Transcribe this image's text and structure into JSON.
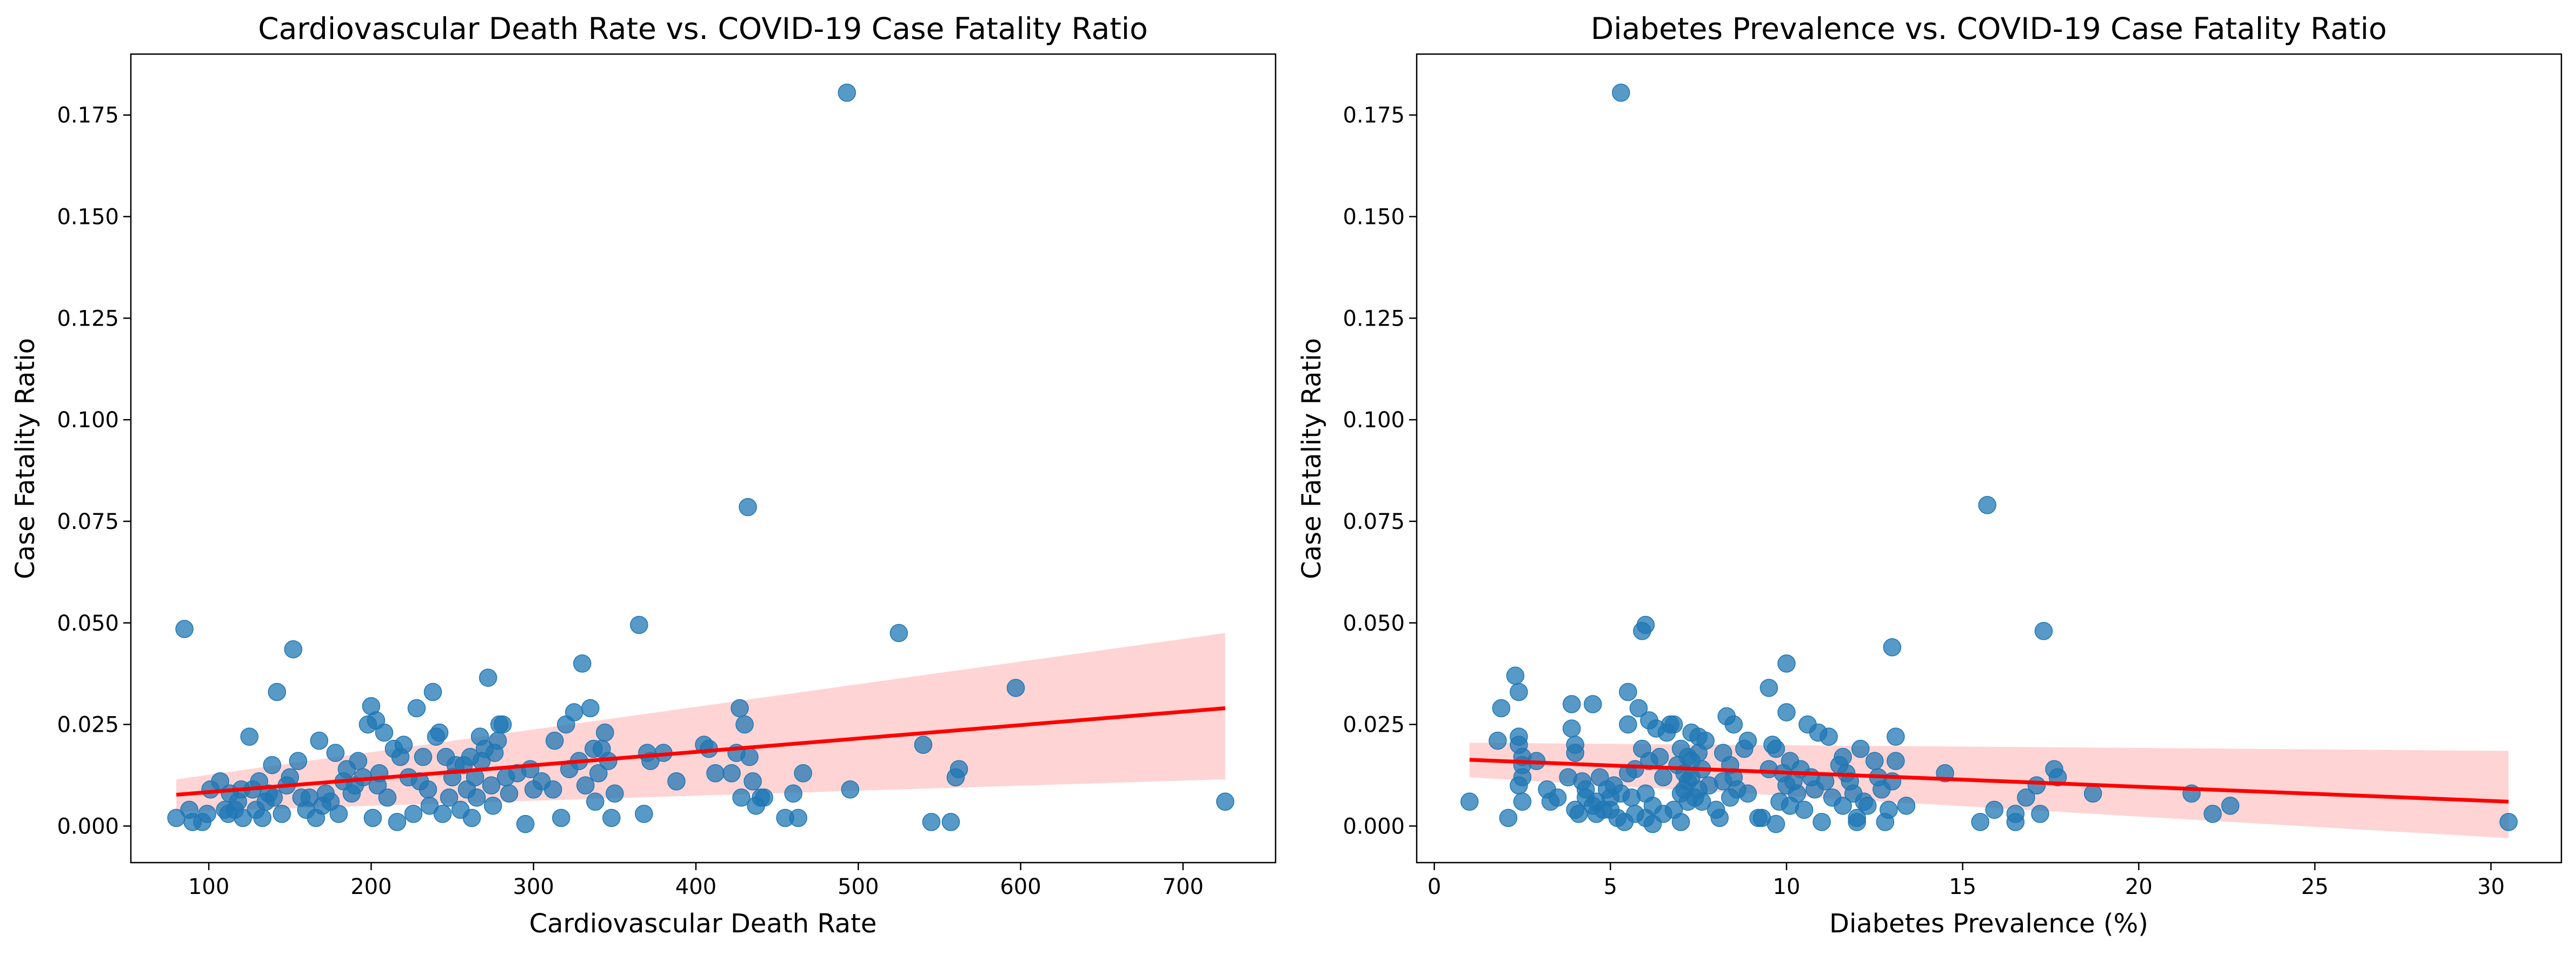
{
  "figure": {
    "background": "#ffffff"
  },
  "chart_data": [
    {
      "type": "scatter",
      "title": "Cardiovascular Death Rate vs. COVID-19 Case Fatality Ratio",
      "xlabel": "Cardiovascular Death Rate",
      "ylabel": "Case Fatality Ratio",
      "xlim": [
        52,
        757
      ],
      "ylim": [
        -0.009,
        0.19
      ],
      "xticks": [
        100,
        200,
        300,
        400,
        500,
        600,
        700
      ],
      "xtick_labels": [
        "100",
        "200",
        "300",
        "400",
        "500",
        "600",
        "700"
      ],
      "yticks": [
        0.0,
        0.025,
        0.05,
        0.075,
        0.1,
        0.125,
        0.15,
        0.175
      ],
      "ytick_labels": [
        "0.000",
        "0.025",
        "0.050",
        "0.075",
        "0.100",
        "0.125",
        "0.150",
        "0.175"
      ],
      "grid": false,
      "legend": "none",
      "marker_color": "#1f77b4",
      "fit_color": "#ff0000",
      "band_color": "#ffcccc",
      "points": [
        [
          80,
          0.002
        ],
        [
          85,
          0.0485
        ],
        [
          88,
          0.004
        ],
        [
          90,
          0.001
        ],
        [
          96,
          0.001
        ],
        [
          99,
          0.003
        ],
        [
          101,
          0.009
        ],
        [
          107,
          0.011
        ],
        [
          110,
          0.004
        ],
        [
          112,
          0.003
        ],
        [
          113,
          0.008
        ],
        [
          116,
          0.004
        ],
        [
          118,
          0.006
        ],
        [
          120,
          0.009
        ],
        [
          121,
          0.002
        ],
        [
          125,
          0.022
        ],
        [
          127,
          0.009
        ],
        [
          129,
          0.004
        ],
        [
          131,
          0.011
        ],
        [
          133,
          0.002
        ],
        [
          135,
          0.006
        ],
        [
          137,
          0.008
        ],
        [
          139,
          0.015
        ],
        [
          140,
          0.007
        ],
        [
          142,
          0.033
        ],
        [
          145,
          0.003
        ],
        [
          148,
          0.01
        ],
        [
          150,
          0.012
        ],
        [
          152,
          0.0435
        ],
        [
          155,
          0.016
        ],
        [
          157,
          0.007
        ],
        [
          160,
          0.004
        ],
        [
          162,
          0.007
        ],
        [
          166,
          0.002
        ],
        [
          168,
          0.021
        ],
        [
          170,
          0.005
        ],
        [
          172,
          0.008
        ],
        [
          175,
          0.006
        ],
        [
          178,
          0.018
        ],
        [
          180,
          0.003
        ],
        [
          183,
          0.011
        ],
        [
          185,
          0.014
        ],
        [
          188,
          0.008
        ],
        [
          190,
          0.01
        ],
        [
          192,
          0.016
        ],
        [
          195,
          0.012
        ],
        [
          198,
          0.025
        ],
        [
          200,
          0.0295
        ],
        [
          201,
          0.002
        ],
        [
          203,
          0.026
        ],
        [
          204,
          0.01
        ],
        [
          205,
          0.013
        ],
        [
          208,
          0.023
        ],
        [
          210,
          0.007
        ],
        [
          214,
          0.019
        ],
        [
          216,
          0.001
        ],
        [
          218,
          0.017
        ],
        [
          220,
          0.02
        ],
        [
          223,
          0.012
        ],
        [
          226,
          0.003
        ],
        [
          228,
          0.029
        ],
        [
          230,
          0.011
        ],
        [
          232,
          0.017
        ],
        [
          235,
          0.009
        ],
        [
          236,
          0.005
        ],
        [
          238,
          0.033
        ],
        [
          240,
          0.022
        ],
        [
          242,
          0.023
        ],
        [
          244,
          0.003
        ],
        [
          246,
          0.017
        ],
        [
          248,
          0.007
        ],
        [
          250,
          0.012
        ],
        [
          252,
          0.015
        ],
        [
          255,
          0.004
        ],
        [
          257,
          0.015
        ],
        [
          259,
          0.009
        ],
        [
          261,
          0.017
        ],
        [
          262,
          0.002
        ],
        [
          264,
          0.012
        ],
        [
          265,
          0.007
        ],
        [
          267,
          0.022
        ],
        [
          268,
          0.016
        ],
        [
          270,
          0.019
        ],
        [
          272,
          0.0365
        ],
        [
          274,
          0.01
        ],
        [
          275,
          0.005
        ],
        [
          276,
          0.018
        ],
        [
          278,
          0.021
        ],
        [
          279,
          0.025
        ],
        [
          281,
          0.025
        ],
        [
          283,
          0.012
        ],
        [
          285,
          0.008
        ],
        [
          290,
          0.013
        ],
        [
          295,
          0.0005
        ],
        [
          298,
          0.014
        ],
        [
          300,
          0.009
        ],
        [
          305,
          0.011
        ],
        [
          312,
          0.009
        ],
        [
          313,
          0.021
        ],
        [
          317,
          0.002
        ],
        [
          320,
          0.025
        ],
        [
          322,
          0.014
        ],
        [
          325,
          0.028
        ],
        [
          328,
          0.016
        ],
        [
          330,
          0.04
        ],
        [
          332,
          0.01
        ],
        [
          335,
          0.029
        ],
        [
          337,
          0.019
        ],
        [
          338,
          0.006
        ],
        [
          340,
          0.013
        ],
        [
          342,
          0.019
        ],
        [
          344,
          0.023
        ],
        [
          346,
          0.016
        ],
        [
          348,
          0.002
        ],
        [
          350,
          0.008
        ],
        [
          365,
          0.0495
        ],
        [
          368,
          0.003
        ],
        [
          370,
          0.018
        ],
        [
          372,
          0.016
        ],
        [
          380,
          0.018
        ],
        [
          388,
          0.011
        ],
        [
          405,
          0.02
        ],
        [
          408,
          0.019
        ],
        [
          412,
          0.013
        ],
        [
          422,
          0.013
        ],
        [
          425,
          0.018
        ],
        [
          427,
          0.029
        ],
        [
          428,
          0.007
        ],
        [
          430,
          0.025
        ],
        [
          432,
          0.0785
        ],
        [
          433,
          0.017
        ],
        [
          435,
          0.011
        ],
        [
          437,
          0.005
        ],
        [
          440,
          0.007
        ],
        [
          442,
          0.007
        ],
        [
          455,
          0.002
        ],
        [
          460,
          0.008
        ],
        [
          463,
          0.002
        ],
        [
          466,
          0.013
        ],
        [
          493,
          0.1805
        ],
        [
          495,
          0.009
        ],
        [
          525,
          0.0475
        ],
        [
          540,
          0.02
        ],
        [
          545,
          0.001
        ],
        [
          557,
          0.001
        ],
        [
          560,
          0.012
        ],
        [
          562,
          0.014
        ],
        [
          597,
          0.034
        ],
        [
          726,
          0.006
        ]
      ],
      "fit_line": {
        "x": [
          80,
          726
        ],
        "y": [
          0.0077,
          0.029
        ]
      },
      "confidence_band": {
        "x": [
          80,
          726
        ],
        "lower": [
          0.0035,
          0.0115
        ],
        "upper": [
          0.0115,
          0.0475
        ]
      }
    },
    {
      "type": "scatter",
      "title": "Diabetes Prevalence vs. COVID-19 Case Fatality Ratio",
      "xlabel": "Diabetes Prevalence (%)",
      "ylabel": "Case Fatality Ratio",
      "xlim": [
        -0.5,
        32
      ],
      "ylim": [
        -0.009,
        0.19
      ],
      "xticks": [
        0,
        5,
        10,
        15,
        20,
        25,
        30
      ],
      "xtick_labels": [
        "0",
        "5",
        "10",
        "15",
        "20",
        "25",
        "30"
      ],
      "yticks": [
        0.0,
        0.025,
        0.05,
        0.075,
        0.1,
        0.125,
        0.15,
        0.175
      ],
      "ytick_labels": [
        "0.000",
        "0.025",
        "0.050",
        "0.075",
        "0.100",
        "0.125",
        "0.150",
        "0.175"
      ],
      "grid": false,
      "legend": "none",
      "marker_color": "#1f77b4",
      "fit_color": "#ff0000",
      "band_color": "#ffcccc",
      "points": [
        [
          1.0,
          0.006
        ],
        [
          1.8,
          0.021
        ],
        [
          1.9,
          0.029
        ],
        [
          2.1,
          0.002
        ],
        [
          2.3,
          0.037
        ],
        [
          2.4,
          0.033
        ],
        [
          2.4,
          0.022
        ],
        [
          2.4,
          0.02
        ],
        [
          2.5,
          0.017
        ],
        [
          2.5,
          0.015
        ],
        [
          2.5,
          0.012
        ],
        [
          2.4,
          0.01
        ],
        [
          2.5,
          0.006
        ],
        [
          2.9,
          0.016
        ],
        [
          3.2,
          0.009
        ],
        [
          3.3,
          0.006
        ],
        [
          3.5,
          0.007
        ],
        [
          3.8,
          0.012
        ],
        [
          3.9,
          0.03
        ],
        [
          3.9,
          0.024
        ],
        [
          4.0,
          0.02
        ],
        [
          4.0,
          0.018
        ],
        [
          4.0,
          0.004
        ],
        [
          4.1,
          0.003
        ],
        [
          4.2,
          0.011
        ],
        [
          4.3,
          0.009
        ],
        [
          4.3,
          0.007
        ],
        [
          4.5,
          0.005
        ],
        [
          4.5,
          0.03
        ],
        [
          4.6,
          0.006
        ],
        [
          4.6,
          0.003
        ],
        [
          4.7,
          0.012
        ],
        [
          4.8,
          0.004
        ],
        [
          4.9,
          0.009
        ],
        [
          5.0,
          0.007
        ],
        [
          5.0,
          0.004
        ],
        [
          5.1,
          0.01
        ],
        [
          5.2,
          0.002
        ],
        [
          5.3,
          0.008
        ],
        [
          5.3,
          0.1805
        ],
        [
          5.4,
          0.001
        ],
        [
          5.5,
          0.025
        ],
        [
          5.5,
          0.033
        ],
        [
          5.5,
          0.013
        ],
        [
          5.6,
          0.007
        ],
        [
          5.7,
          0.003
        ],
        [
          5.7,
          0.014
        ],
        [
          5.8,
          0.029
        ],
        [
          5.9,
          0.048
        ],
        [
          5.9,
          0.019
        ],
        [
          6.0,
          0.0495
        ],
        [
          6.0,
          0.008
        ],
        [
          6.0,
          0.002
        ],
        [
          6.1,
          0.016
        ],
        [
          6.1,
          0.026
        ],
        [
          6.2,
          0.005
        ],
        [
          6.2,
          0.0005
        ],
        [
          6.3,
          0.024
        ],
        [
          6.4,
          0.017
        ],
        [
          6.5,
          0.003
        ],
        [
          6.5,
          0.012
        ],
        [
          6.6,
          0.023
        ],
        [
          6.7,
          0.025
        ],
        [
          6.8,
          0.025
        ],
        [
          6.8,
          0.004
        ],
        [
          6.9,
          0.015
        ],
        [
          7.0,
          0.019
        ],
        [
          7.0,
          0.008
        ],
        [
          7.0,
          0.001
        ],
        [
          7.1,
          0.009
        ],
        [
          7.1,
          0.013
        ],
        [
          7.2,
          0.011
        ],
        [
          7.2,
          0.017
        ],
        [
          7.2,
          0.006
        ],
        [
          7.3,
          0.023
        ],
        [
          7.3,
          0.016
        ],
        [
          7.3,
          0.012
        ],
        [
          7.4,
          0.007
        ],
        [
          7.5,
          0.009
        ],
        [
          7.5,
          0.018
        ],
        [
          7.5,
          0.022
        ],
        [
          7.6,
          0.014
        ],
        [
          7.6,
          0.006
        ],
        [
          7.7,
          0.021
        ],
        [
          7.8,
          0.01
        ],
        [
          8.0,
          0.004
        ],
        [
          8.1,
          0.002
        ],
        [
          8.2,
          0.018
        ],
        [
          8.2,
          0.011
        ],
        [
          8.3,
          0.027
        ],
        [
          8.4,
          0.015
        ],
        [
          8.4,
          0.007
        ],
        [
          8.5,
          0.012
        ],
        [
          8.5,
          0.025
        ],
        [
          8.6,
          0.009
        ],
        [
          8.8,
          0.019
        ],
        [
          8.9,
          0.008
        ],
        [
          8.9,
          0.021
        ],
        [
          9.2,
          0.002
        ],
        [
          9.3,
          0.002
        ],
        [
          9.5,
          0.034
        ],
        [
          9.5,
          0.014
        ],
        [
          9.6,
          0.02
        ],
        [
          9.7,
          0.0005
        ],
        [
          9.7,
          0.019
        ],
        [
          9.8,
          0.006
        ],
        [
          9.9,
          0.013
        ],
        [
          10.0,
          0.01
        ],
        [
          10.0,
          0.04
        ],
        [
          10.0,
          0.028
        ],
        [
          10.1,
          0.016
        ],
        [
          10.1,
          0.005
        ],
        [
          10.2,
          0.011
        ],
        [
          10.3,
          0.008
        ],
        [
          10.4,
          0.014
        ],
        [
          10.5,
          0.004
        ],
        [
          10.6,
          0.025
        ],
        [
          10.7,
          0.012
        ],
        [
          10.8,
          0.009
        ],
        [
          10.9,
          0.023
        ],
        [
          11.0,
          0.001
        ],
        [
          11.1,
          0.011
        ],
        [
          11.2,
          0.022
        ],
        [
          11.3,
          0.007
        ],
        [
          11.5,
          0.015
        ],
        [
          11.6,
          0.017
        ],
        [
          11.6,
          0.005
        ],
        [
          11.7,
          0.013
        ],
        [
          11.8,
          0.011
        ],
        [
          11.9,
          0.008
        ],
        [
          12.0,
          0.002
        ],
        [
          12.0,
          0.001
        ],
        [
          12.1,
          0.019
        ],
        [
          12.2,
          0.006
        ],
        [
          12.3,
          0.005
        ],
        [
          12.5,
          0.016
        ],
        [
          12.6,
          0.012
        ],
        [
          12.7,
          0.009
        ],
        [
          12.8,
          0.001
        ],
        [
          12.9,
          0.004
        ],
        [
          13.0,
          0.044
        ],
        [
          13.0,
          0.011
        ],
        [
          13.1,
          0.022
        ],
        [
          13.1,
          0.016
        ],
        [
          13.4,
          0.005
        ],
        [
          14.5,
          0.013
        ],
        [
          15.5,
          0.001
        ],
        [
          15.7,
          0.079
        ],
        [
          15.9,
          0.004
        ],
        [
          16.5,
          0.003
        ],
        [
          16.5,
          0.001
        ],
        [
          16.8,
          0.007
        ],
        [
          17.1,
          0.01
        ],
        [
          17.2,
          0.003
        ],
        [
          17.3,
          0.048
        ],
        [
          17.6,
          0.014
        ],
        [
          17.7,
          0.012
        ],
        [
          18.7,
          0.008
        ],
        [
          21.5,
          0.008
        ],
        [
          22.1,
          0.003
        ],
        [
          22.6,
          0.005
        ],
        [
          30.5,
          0.001
        ]
      ],
      "fit_line": {
        "x": [
          1.0,
          30.5
        ],
        "y": [
          0.0163,
          0.006
        ]
      },
      "confidence_band": {
        "x": [
          1.0,
          30.5
        ],
        "lower": [
          0.012,
          -0.003
        ],
        "upper": [
          0.0205,
          0.0185
        ]
      }
    }
  ]
}
